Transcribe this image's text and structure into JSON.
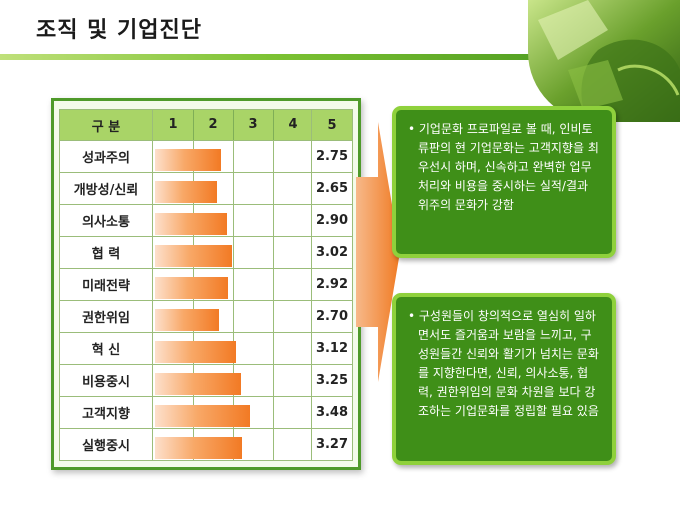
{
  "page_title": "조직 및 기업진단",
  "chart_data": {
    "type": "bar",
    "header": {
      "category_label": "구  분",
      "scale": [
        "1",
        "2",
        "3",
        "4",
        "5"
      ]
    },
    "xlim": [
      1,
      5
    ],
    "categories": [
      "성과주의",
      "개방성/신뢰",
      "의사소통",
      "협   력",
      "미래전략",
      "권한위임",
      "혁   신",
      "비용중시",
      "고객지향",
      "실행중시"
    ],
    "values": [
      2.75,
      2.65,
      2.9,
      3.02,
      2.92,
      2.7,
      3.12,
      3.25,
      3.48,
      3.27
    ],
    "value_labels": [
      "2.75",
      "2.65",
      "2.90",
      "3.02",
      "2.92",
      "2.70",
      "3.12",
      "3.25",
      "3.48",
      "3.27"
    ]
  },
  "cards": [
    "• 기업문화 프로파일로 볼 때, 인비토류판의 현 기업문화는 고객지향을 최우선시 하며, 신속하고 완벽한 업무처리와 비용을 중시하는 실적/결과 위주의 문화가 강함",
    "• 구성원들이 창의적으로 열심히 일하면서도 즐거움과 보람을 느끼고, 구성원들간 신뢰와 활기가 넘치는 문화를 지향한다면, 신뢰, 의사소통, 협력, 권한위임의 문화 차원을 보다 강조하는 기업문화를 정립할 필요 있음"
  ],
  "colors": {
    "accent_green": "#4f9a2a",
    "bar_orange": "#f27a24",
    "card_green": "#3f8f18"
  }
}
